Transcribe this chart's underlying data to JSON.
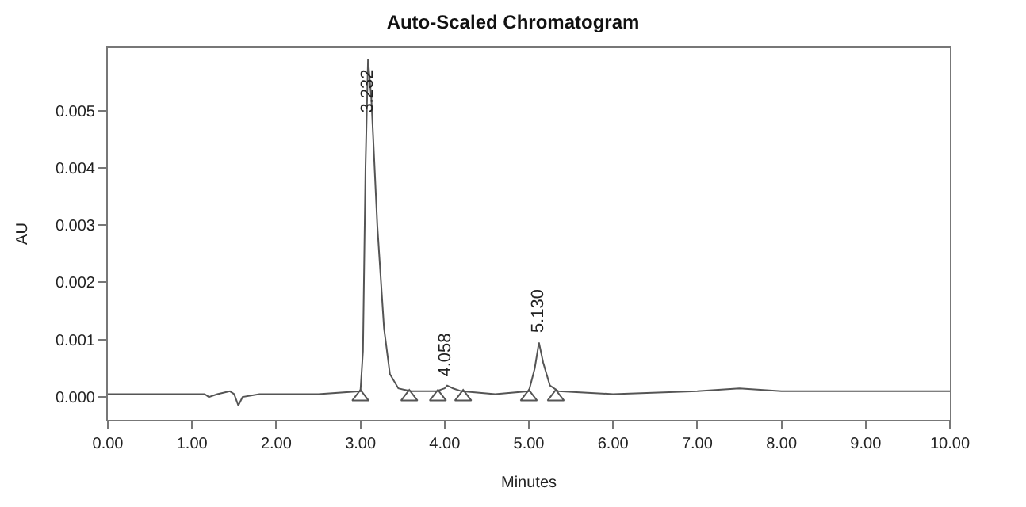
{
  "chart_data": {
    "type": "line",
    "title": "Auto-Scaled Chromatogram",
    "xlabel": "Minutes",
    "ylabel": "AU",
    "series": [
      {
        "color": "#555555",
        "x": [
          0,
          0.5,
          1.0,
          1.15,
          1.2,
          1.3,
          1.45,
          1.5,
          1.55,
          1.6,
          1.8,
          2.5,
          3.0,
          3.03,
          3.06,
          3.09,
          3.13,
          3.2,
          3.28,
          3.35,
          3.45,
          3.6,
          3.9,
          4.0,
          4.03,
          4.1,
          4.2,
          4.6,
          5.0,
          5.07,
          5.12,
          5.17,
          5.25,
          5.35,
          6.0,
          7.0,
          7.5,
          8.0,
          9.0,
          10.0
        ],
        "values": [
          5e-05,
          5e-05,
          5e-05,
          5e-05,
          0.0,
          5e-05,
          0.0001,
          5e-05,
          -0.00015,
          0.0,
          5e-05,
          5e-05,
          0.0001,
          0.0008,
          0.004,
          0.0059,
          0.0052,
          0.003,
          0.0012,
          0.0004,
          0.00015,
          0.0001,
          0.0001,
          0.00015,
          0.0002,
          0.00015,
          0.0001,
          5e-05,
          0.0001,
          0.0005,
          0.00095,
          0.0006,
          0.0002,
          0.0001,
          5e-05,
          0.0001,
          0.00015,
          0.0001,
          0.0001,
          0.0001
        ]
      },
      {
        "type": "scatter",
        "marker": "triangle",
        "color": "#555555",
        "x": [
          3.0,
          3.58,
          3.92,
          4.22,
          5.0,
          5.32
        ],
        "values": [
          0.0,
          0.0,
          0.0,
          0.0,
          0.0,
          0.0
        ]
      }
    ],
    "annotations": [
      {
        "text": "3.232",
        "x": 3.09,
        "y": 0.0059
      },
      {
        "text": "4.058",
        "x": 4.02,
        "y": 0.0002
      },
      {
        "text": "5.130",
        "x": 5.12,
        "y": 0.00095
      }
    ],
    "xlim": [
      0,
      10
    ],
    "xticks": [
      {
        "value": 0,
        "label": "0.00"
      },
      {
        "value": 1,
        "label": "1.00"
      },
      {
        "value": 2,
        "label": "2.00"
      },
      {
        "value": 3,
        "label": "3.00"
      },
      {
        "value": 4,
        "label": "4.00"
      },
      {
        "value": 5,
        "label": "5.00"
      },
      {
        "value": 6,
        "label": "6.00"
      },
      {
        "value": 7,
        "label": "7.00"
      },
      {
        "value": 8,
        "label": "8.00"
      },
      {
        "value": 9,
        "label": "9.00"
      },
      {
        "value": 10,
        "label": "10.00"
      }
    ],
    "ylim": [
      -0.0004,
      0.0061
    ],
    "yticks": [
      {
        "value": 0,
        "label": "0.000"
      },
      {
        "value": 0.001,
        "label": "0.001"
      },
      {
        "value": 0.002,
        "label": "0.002"
      },
      {
        "value": 0.003,
        "label": "0.003"
      },
      {
        "value": 0.004,
        "label": "0.004"
      },
      {
        "value": 0.005,
        "label": "0.005"
      }
    ],
    "tick_labels": [
      "x",
      "y"
    ]
  }
}
